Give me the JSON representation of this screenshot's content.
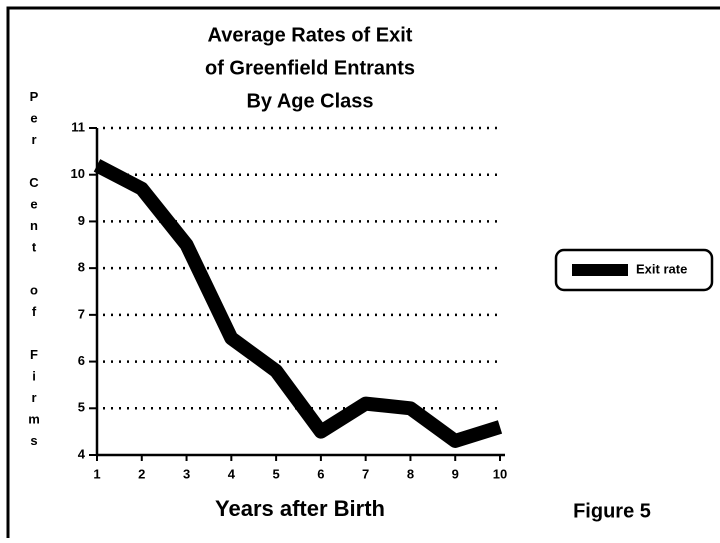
{
  "chart_data": {
    "type": "line",
    "title": [
      "Average Rates of Exit",
      "of Greenfield Entrants",
      "By Age Class"
    ],
    "y_label": "Per Cent of Firms",
    "x_label": "Years after Birth",
    "annotation": "Figure 5",
    "x": [
      1,
      2,
      3,
      4,
      5,
      6,
      7,
      8,
      9,
      10
    ],
    "series": [
      {
        "name": "Exit rate",
        "color": "#000000",
        "values": [
          10.2,
          9.7,
          8.5,
          6.5,
          5.8,
          4.5,
          5.1,
          5.0,
          4.3,
          4.6
        ]
      }
    ],
    "xlim": [
      1,
      10
    ],
    "xticks": [
      1,
      2,
      3,
      4,
      5,
      6,
      7,
      8,
      9,
      10
    ],
    "ylim": [
      4,
      11
    ],
    "yticks": [
      4,
      5,
      6,
      7,
      8,
      9,
      10,
      11
    ],
    "grid": true,
    "legend": "right"
  }
}
